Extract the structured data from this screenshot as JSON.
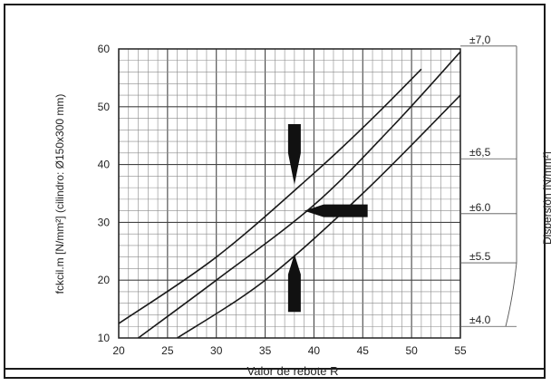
{
  "chart_data": {
    "type": "line",
    "xlabel": "Valor de rebote R",
    "ylabel": "fckcil.m [N/mm²] (cilindro: Ø150x300 mm)",
    "right_label": "Dispersión [N/mm²]",
    "xlim": [
      20,
      55
    ],
    "ylim": [
      10,
      60
    ],
    "x_ticks": [
      20,
      25,
      30,
      35,
      40,
      45,
      50,
      55
    ],
    "y_ticks": [
      10,
      20,
      30,
      40,
      50,
      60
    ],
    "grid": true,
    "series": [
      {
        "points": [
          [
            20,
            12.5
          ],
          [
            30,
            24
          ],
          [
            40,
            38.5
          ],
          [
            46,
            48
          ],
          [
            51,
            56.5
          ]
        ]
      },
      {
        "points": [
          [
            22,
            10
          ],
          [
            30,
            20
          ],
          [
            40,
            33
          ],
          [
            48,
            46.5
          ],
          [
            55,
            59.5
          ]
        ]
      },
      {
        "points": [
          [
            26,
            10
          ],
          [
            35,
            20
          ],
          [
            45,
            35
          ],
          [
            55,
            52
          ]
        ]
      }
    ],
    "dispersion_labels": [
      {
        "text": "±7,0",
        "y": 60.5
      },
      {
        "text": "±6,5",
        "y": 41
      },
      {
        "text": "±6.0",
        "y": 31.5
      },
      {
        "text": "±5.5",
        "y": 23
      },
      {
        "text": "±4.0",
        "y": 12
      }
    ]
  }
}
